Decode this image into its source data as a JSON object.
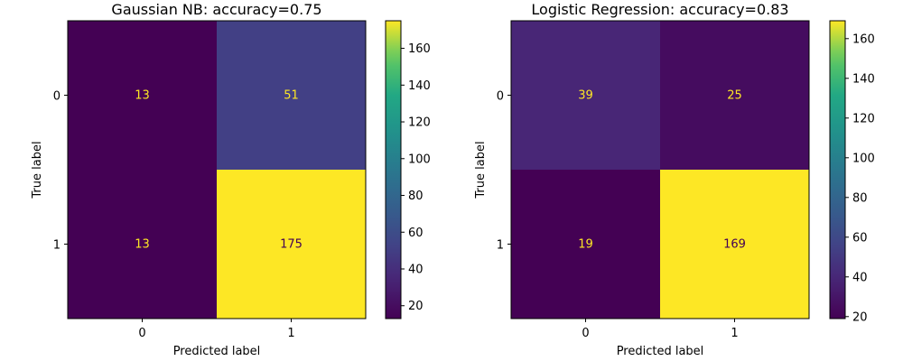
{
  "chart_data": [
    {
      "type": "heatmap",
      "title": "Gaussian NB: accuracy=0.75",
      "xlabel": "Predicted label",
      "ylabel": "True label",
      "x_categories": [
        "0",
        "1"
      ],
      "y_categories": [
        "0",
        "1"
      ],
      "values": [
        [
          13,
          51
        ],
        [
          13,
          175
        ]
      ],
      "color_range": [
        13,
        175
      ],
      "colorbar_ticks": [
        "20",
        "40",
        "60",
        "80",
        "100",
        "120",
        "140",
        "160"
      ],
      "colormap": "viridis",
      "grid": false
    },
    {
      "type": "heatmap",
      "title": "Logistic Regression: accuracy=0.83",
      "xlabel": "Predicted label",
      "ylabel": "True label",
      "x_categories": [
        "0",
        "1"
      ],
      "y_categories": [
        "0",
        "1"
      ],
      "values": [
        [
          39,
          25
        ],
        [
          19,
          169
        ]
      ],
      "color_range": [
        19,
        169
      ],
      "colorbar_ticks": [
        "20",
        "40",
        "60",
        "80",
        "100",
        "120",
        "140",
        "160"
      ],
      "colormap": "viridis",
      "grid": false
    }
  ],
  "colors": {
    "text_light": "#fde725",
    "text_dark": "#440154"
  }
}
